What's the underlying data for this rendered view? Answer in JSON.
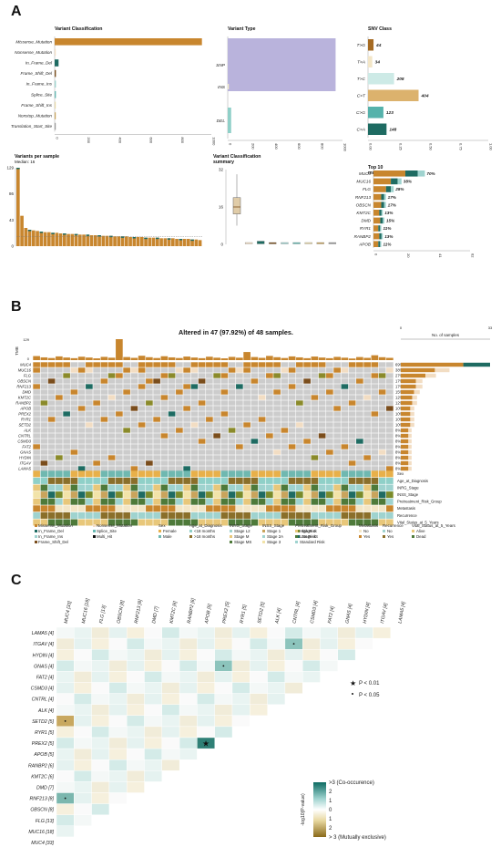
{
  "panels": {
    "a": "A",
    "b": "B",
    "c": "C"
  },
  "variant_classification": {
    "title": "Variant Classification",
    "chart_data": {
      "type": "bar",
      "orientation": "horizontal",
      "categories": [
        "Missense_Mutation",
        "Nonsense_Mutation",
        "In_Frame_Del",
        "Frame_Shift_Del",
        "In_Frame_Ins",
        "Splice_Site",
        "Frame_Shift_Ins",
        "Nonstop_Mutation",
        "Translation_Start_Site"
      ],
      "values": [
        940,
        5,
        25,
        8,
        8,
        8,
        2,
        2,
        2
      ],
      "colors": [
        "#c8862e",
        "#f2ddc3",
        "#1e6b62",
        "#7a4d1c",
        "#9fd3cf",
        "#66b9b3",
        "#e8d9a8",
        "#c9a45c",
        "#999999"
      ],
      "xlim": [
        0,
        1000
      ],
      "xticks": [
        "0",
        "200",
        "400",
        "600",
        "800",
        "1000"
      ]
    }
  },
  "variant_type": {
    "title": "Variant Type",
    "chart_data": {
      "type": "bar",
      "orientation": "horizontal",
      "categories": [
        "SNP",
        "INS",
        "DEL"
      ],
      "values": [
        940,
        5,
        30
      ],
      "colors": [
        "#b9b3dc",
        "#f6efc9",
        "#8fd0c8"
      ],
      "xlim": [
        0,
        1000
      ],
      "xticks": [
        "0",
        "200",
        "400",
        "600",
        "800",
        "1000"
      ]
    }
  },
  "snv_class": {
    "title": "SNV Class",
    "chart_data": {
      "type": "bar",
      "orientation": "horizontal",
      "categories": [
        "T>G",
        "T>A",
        "T>C",
        "C>T",
        "C>G",
        "C>A"
      ],
      "values": [
        44,
        34,
        208,
        404,
        123,
        148
      ],
      "colors": [
        "#a66b23",
        "#f3e6c7",
        "#cdeae6",
        "#dcb26d",
        "#55b2ab",
        "#1e6b62"
      ],
      "xlim": [
        0,
        1
      ],
      "xticks": [
        "0.00",
        "0.25",
        "0.50",
        "0.75",
        "1.00"
      ]
    }
  },
  "variants_per_sample": {
    "title": "Variants per sample",
    "subtitle": "Median: 16",
    "chart_data": {
      "type": "bar",
      "values": [
        129,
        50,
        30,
        27,
        26,
        25,
        24,
        23,
        23,
        22,
        22,
        21,
        21,
        20,
        20,
        20,
        19,
        19,
        19,
        18,
        18,
        18,
        17,
        17,
        17,
        16,
        16,
        16,
        16,
        15,
        15,
        15,
        15,
        14,
        14,
        14,
        14,
        13,
        13,
        13,
        13,
        12,
        12,
        12,
        12,
        11,
        11,
        10
      ],
      "ylim": [
        0,
        129
      ],
      "yticks": [
        "0",
        "43",
        "86",
        "129"
      ]
    }
  },
  "variant_classification_summary": {
    "title": "Variant Classification",
    "subtitle": "summary",
    "chart_data": {
      "type": "boxplot",
      "categories": [
        "Missense_Mutation",
        "Nonsense_Mutation",
        "In_Frame_Del",
        "Frame_Shift_Del",
        "In_Frame_Ins",
        "Splice_Site",
        "Frame_Shift_Ins",
        "Nonstop_Mutation",
        "Translation_Start_Site"
      ],
      "medians": [
        16,
        0,
        0,
        0,
        0,
        0,
        0,
        0,
        0
      ],
      "ylim": [
        0,
        32
      ],
      "yticks": [
        "0",
        "16",
        "32"
      ]
    }
  },
  "top_mutated_genes": {
    "title": "Top 10",
    "subtitle": "mutated genes",
    "chart_data": {
      "type": "bar",
      "orientation": "horizontal",
      "categories": [
        "MUC4",
        "MUC16",
        "FLG",
        "RNF213",
        "OBSCN",
        "KMT2C",
        "DMD",
        "RYR1",
        "RANBP2",
        "APOB"
      ],
      "values": [
        33,
        18,
        13,
        8,
        8,
        6,
        7,
        5,
        6,
        5
      ],
      "labels": [
        "70%",
        "38%",
        "28%",
        "17%",
        "17%",
        "13%",
        "15%",
        "11%",
        "13%",
        "11%"
      ],
      "xlim": [
        0,
        62
      ],
      "xticks": [
        "0",
        "20",
        "41",
        "62"
      ]
    }
  },
  "oncoplot": {
    "title": "Altered in 47 (97.92%) of 48 samples.",
    "tmb_label": "TMB",
    "tmb_ticks": [
      "129",
      "0"
    ],
    "samples_axis_label": "No. of samples",
    "samples_ticks": [
      "0",
      "33"
    ],
    "genes": [
      "MUC4",
      "MUC16",
      "FLG",
      "OBSCN",
      "RNF213",
      "DMD",
      "KMT2C",
      "RANBP2",
      "APOB",
      "PREX2",
      "RYR1",
      "SETD2",
      "ALK",
      "CNTRL",
      "CSMD3",
      "FAT2",
      "GNAS",
      "HYDIN",
      "ITGAV",
      "LAMA5"
    ],
    "percents": [
      "69%",
      "38%",
      "27%",
      "17%",
      "17%",
      "15%",
      "12%",
      "12%",
      "10%",
      "10%",
      "10%",
      "10%",
      "8%",
      "8%",
      "8%",
      "8%",
      "8%",
      "8%",
      "8%",
      "8%"
    ],
    "chart_data": {
      "type": "heatmap",
      "genes": [
        "MUC4",
        "MUC16",
        "FLG",
        "OBSCN",
        "RNF213",
        "DMD",
        "KMT2C",
        "RANBP2",
        "APOB",
        "PREX2",
        "RYR1",
        "SETD2",
        "ALK",
        "CNTRL",
        "CSMD3",
        "FAT2",
        "GNAS",
        "HYDIN",
        "ITGAV",
        "LAMA5"
      ],
      "samples_altered": [
        33,
        18,
        13,
        8,
        8,
        7,
        6,
        6,
        5,
        5,
        5,
        5,
        4,
        4,
        4,
        4,
        4,
        4,
        4,
        4
      ]
    },
    "clinical_tracks": [
      "Sex",
      "Age_at_Diagnosis",
      "INRG_Stage",
      "INSS_Stage",
      "Pretreatment_Risk_Group",
      "Metastasis",
      "Recurrence",
      "Vital_Status_at_5_Years"
    ]
  },
  "legend_b": {
    "mutation": [
      {
        "label": "Missense_Mutation",
        "color": "#c8862e"
      },
      {
        "label": "Nonsense_Mutation",
        "color": "#f2ddc3"
      },
      {
        "label": "In_Frame_Del",
        "color": "#1e6b62"
      },
      {
        "label": "Splice_Site",
        "color": "#66b9b3"
      },
      {
        "label": "In_Frame_Ins",
        "color": "#9fd3cf"
      },
      {
        "label": "Multi_Hit",
        "color": "#111111"
      },
      {
        "label": "Frame_Shift_Del",
        "color": "#7a4d1c"
      }
    ],
    "groups": [
      {
        "title": "Sex",
        "items": [
          {
            "label": "Female",
            "color": "#e8b04a"
          },
          {
            "label": "Male",
            "color": "#6fb8b0"
          }
        ]
      },
      {
        "title": "Age_at_Diagnosis",
        "items": [
          {
            "label": "<18 months",
            "color": "#8fd0c8"
          },
          {
            "label": ">18 months",
            "color": "#8a6f2a"
          }
        ]
      },
      {
        "title": "INRG_Stage",
        "items": [
          {
            "label": "Stage L2",
            "color": "#9fd3cf"
          },
          {
            "label": "Stage M",
            "color": "#e8c77a"
          },
          {
            "label": "Stage MS",
            "color": "#4e7a3a"
          }
        ]
      },
      {
        "title": "INSS_Stage",
        "items": [
          {
            "label": "Stage 1",
            "color": "#c9a45c"
          },
          {
            "label": "Stage 2A",
            "color": "#9fd3cf"
          },
          {
            "label": "Stage 3",
            "color": "#f2e3a8"
          },
          {
            "label": "Stage 4",
            "color": "#7a8b2a"
          },
          {
            "label": "Stage 4S",
            "color": "#1e6b62"
          }
        ]
      },
      {
        "title": "Pretreatment_Risk_Group",
        "items": [
          {
            "label": "High Risk",
            "color": "#e8c77a"
          },
          {
            "label": "Low Risk",
            "color": "#4e7a3a"
          },
          {
            "label": "Standard Risk",
            "color": "#9fd3cf"
          }
        ]
      },
      {
        "title": "Metastasis",
        "items": [
          {
            "label": "No",
            "color": "#f3e6c7"
          },
          {
            "label": "Yes",
            "color": "#c8862e"
          }
        ]
      },
      {
        "title": "Recurrence",
        "items": [
          {
            "label": "No",
            "color": "#9fd3cf"
          },
          {
            "label": "Yes",
            "color": "#8a6f2a"
          }
        ]
      },
      {
        "title": "Vital_Status_at_5_Years",
        "items": [
          {
            "label": "Alive",
            "color": "#e8c77a"
          },
          {
            "label": "Dead",
            "color": "#4e7a3a"
          }
        ]
      }
    ]
  },
  "cooccurrence": {
    "rows": [
      "LAMA5 [4]",
      "ITGAV [4]",
      "HYDIN [4]",
      "GNAS [4]",
      "FAT2 [4]",
      "CSMD3 [4]",
      "CNTRL [4]",
      "ALK [4]",
      "SETD2 [5]",
      "RYR1 [5]",
      "PREX2 [5]",
      "APOB [5]",
      "RANBP2 [6]",
      "KMT2C [6]",
      "DMD [7]",
      "RNF213 [8]",
      "OBSCN [8]",
      "FLG [13]",
      "MUC16 [18]",
      "MUC4 [33]"
    ],
    "cols": [
      "MUC4 [33]",
      "MUC16 [18]",
      "FLG [13]",
      "OBSCN [8]",
      "RNF213 [8]",
      "DMD [7]",
      "KMT2C [6]",
      "RANBP2 [6]",
      "APOB [5]",
      "PREX2 [5]",
      "RYR1 [5]",
      "SETD2 [5]",
      "ALK [4]",
      "CNTRL [4]",
      "CSMD3 [4]",
      "FAT2 [4]",
      "GNAS [4]",
      "HYDIN [4]",
      "ITGAV [4]",
      "LAMA5 [4]"
    ],
    "legend_p01": "P < 0.01",
    "legend_p05": "P < 0.05",
    "scale_labels": [
      ">3 (Co-occurence)",
      "2",
      "1",
      "0",
      "1",
      "2",
      "> 3 (Mutually exclusive)"
    ],
    "scale_axis": "-log10(P-value)",
    "chart_data": {
      "type": "heatmap",
      "significant": [
        {
          "row": "PREX2 [5]",
          "col": "APOB [5]",
          "level": "P < 0.01"
        },
        {
          "row": "ITGAV [4]",
          "col": "CNTRL [4]",
          "level": "P < 0.05"
        },
        {
          "row": "GNAS [4]",
          "col": "PREX2 [5]",
          "level": "P < 0.05"
        },
        {
          "row": "SETD2 [5]",
          "col": "MUC4 [33]",
          "level": "P < 0.05"
        },
        {
          "row": "RNF213 [8]",
          "col": "MUC4 [33]",
          "level": "P < 0.05"
        }
      ]
    }
  }
}
